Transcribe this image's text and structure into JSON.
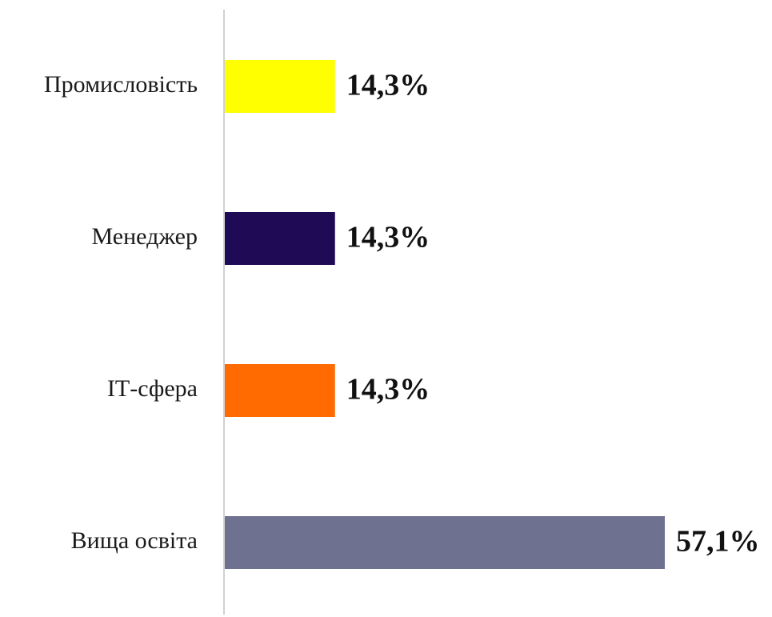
{
  "chart_data": {
    "type": "bar",
    "orientation": "horizontal",
    "categories": [
      "Промисловість",
      "Менеджер",
      "ІТ-сфера",
      "Вища освіта"
    ],
    "values": [
      14.3,
      14.3,
      14.3,
      57.1
    ],
    "value_labels": [
      "14,3%",
      "14,3%",
      "14,3%",
      "57,1%"
    ],
    "colors": [
      "#ffff00",
      "#1f0a55",
      "#ff6b00",
      "#6e718f"
    ],
    "axis_color": "#d0d0d0",
    "grid": false,
    "legend": "none",
    "title": "",
    "xlabel": "",
    "ylabel": "",
    "xlim": [
      0,
      57.1
    ]
  }
}
